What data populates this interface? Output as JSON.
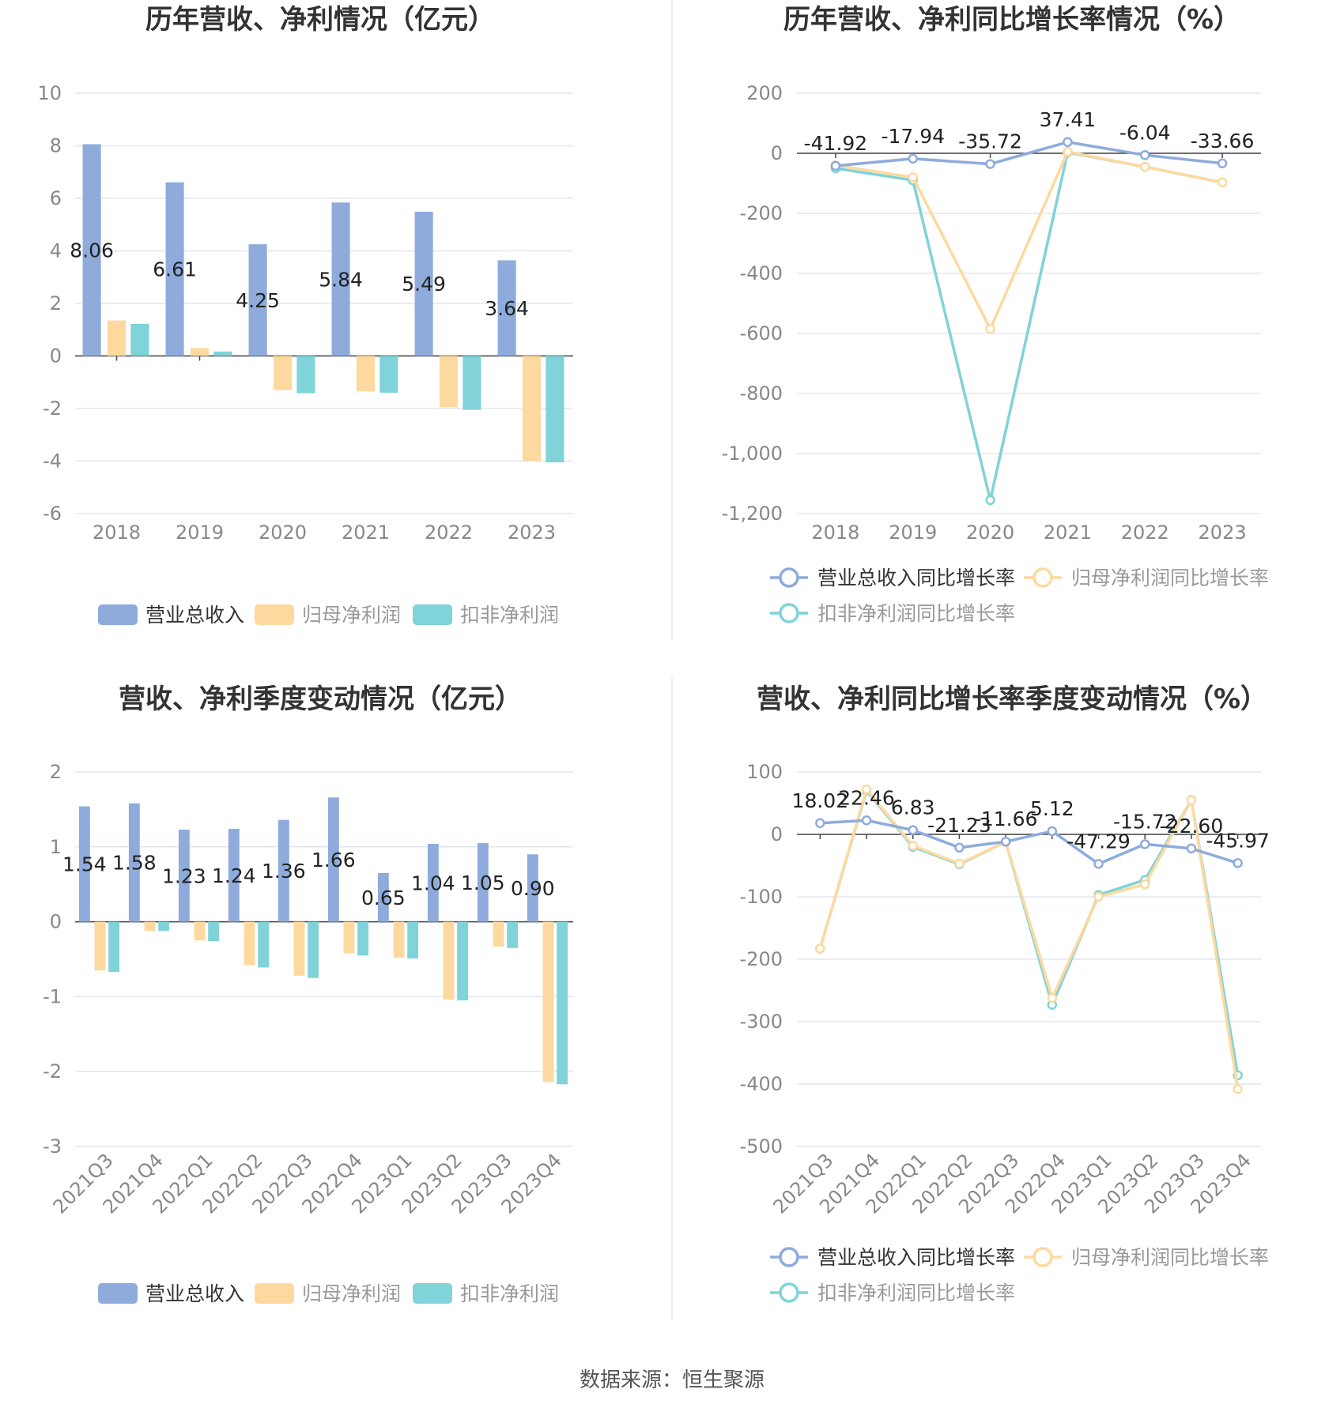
{
  "colors": {
    "revenue": "#8eabdc",
    "net_profit": "#fdd99f",
    "deducted": "#7fd3d9",
    "grid": "#e3e6ef",
    "axis": "#444444",
    "tick_text": "#888888",
    "title": "#333333",
    "label_text": "#222222",
    "divider": "#eeeeee"
  },
  "footer": {
    "source": "数据来源：恒生聚源"
  },
  "chart_data": [
    {
      "id": "annual-amount",
      "type": "bar",
      "title": "历年营收、净利情况（亿元）",
      "categories": [
        "2018",
        "2019",
        "2020",
        "2021",
        "2022",
        "2023"
      ],
      "ylim": [
        -6,
        10
      ],
      "yticks": [
        "10",
        "8",
        "6",
        "4",
        "2",
        "0",
        "-2",
        "-4",
        "-6"
      ],
      "grid": true,
      "legend": "bottom",
      "series": [
        {
          "name": "营业总收入",
          "color_key": "revenue",
          "values": [
            8.06,
            6.61,
            4.25,
            5.84,
            5.49,
            3.64
          ],
          "labels": [
            "8.06",
            "6.61",
            "4.25",
            "5.84",
            "5.49",
            "3.64"
          ]
        },
        {
          "name": "归母净利润",
          "color_key": "net_profit",
          "values": [
            1.35,
            0.3,
            -1.3,
            -1.35,
            -1.95,
            -4.0
          ]
        },
        {
          "name": "扣非净利润",
          "color_key": "deducted",
          "values": [
            1.22,
            0.17,
            -1.42,
            -1.4,
            -2.05,
            -4.05
          ]
        }
      ]
    },
    {
      "id": "annual-growth",
      "type": "line",
      "title": "历年营收、净利同比增长率情况（%）",
      "categories": [
        "2018",
        "2019",
        "2020",
        "2021",
        "2022",
        "2023"
      ],
      "ylim": [
        -1200,
        200
      ],
      "yticks": [
        "200",
        "0",
        "-200",
        "-400",
        "-600",
        "-800",
        "-1,000",
        "-1,200"
      ],
      "grid": true,
      "legend": "bottom",
      "series": [
        {
          "name": "营业总收入同比增长率",
          "color_key": "revenue",
          "values": [
            -41.92,
            -17.94,
            -35.72,
            37.41,
            -6.04,
            -33.66
          ],
          "labels": [
            "-41.92",
            "-17.94",
            "-35.72",
            "37.41",
            "-6.04",
            "-33.66"
          ]
        },
        {
          "name": "归母净利润同比增长率",
          "color_key": "net_profit",
          "values": [
            -40,
            -80,
            -585,
            5,
            -45,
            -97
          ]
        },
        {
          "name": "扣非净利润同比增长率",
          "color_key": "deducted",
          "values": [
            -50,
            -90,
            -1155,
            3,
            -45,
            -97
          ]
        }
      ]
    },
    {
      "id": "quarterly-amount",
      "type": "bar",
      "title": "营收、净利季度变动情况（亿元）",
      "categories": [
        "2021Q3",
        "2021Q4",
        "2022Q1",
        "2022Q2",
        "2022Q3",
        "2022Q4",
        "2023Q1",
        "2023Q2",
        "2023Q3",
        "2023Q4"
      ],
      "ylim": [
        -3,
        2
      ],
      "yticks": [
        "2",
        "1",
        "0",
        "-1",
        "-2",
        "-3"
      ],
      "grid": true,
      "legend": "bottom",
      "series": [
        {
          "name": "营业总收入",
          "color_key": "revenue",
          "values": [
            1.54,
            1.58,
            1.23,
            1.24,
            1.36,
            1.66,
            0.65,
            1.04,
            1.05,
            0.9
          ],
          "labels": [
            "1.54",
            "1.58",
            "1.23",
            "1.24",
            "1.36",
            "1.66",
            "0.65",
            "1.04",
            "1.05",
            "0.90"
          ]
        },
        {
          "name": "归母净利润",
          "color_key": "net_profit",
          "values": [
            -0.65,
            -0.12,
            -0.25,
            -0.58,
            -0.72,
            -0.42,
            -0.48,
            -1.04,
            -0.33,
            -2.14
          ]
        },
        {
          "name": "扣非净利润",
          "color_key": "deducted",
          "values": [
            -0.67,
            -0.12,
            -0.26,
            -0.61,
            -0.75,
            -0.45,
            -0.49,
            -1.05,
            -0.35,
            -2.17
          ]
        }
      ]
    },
    {
      "id": "quarterly-growth",
      "type": "line",
      "title": "营收、净利同比增长率季度变动情况（%）",
      "categories": [
        "2021Q3",
        "2021Q4",
        "2022Q1",
        "2022Q2",
        "2022Q3",
        "2022Q4",
        "2023Q1",
        "2023Q2",
        "2023Q3",
        "2023Q4"
      ],
      "ylim": [
        -500,
        100
      ],
      "yticks": [
        "100",
        "0",
        "-100",
        "-200",
        "-300",
        "-400",
        "-500"
      ],
      "grid": true,
      "legend": "bottom",
      "series": [
        {
          "name": "营业总收入同比增长率",
          "color_key": "revenue",
          "values": [
            18.02,
            22.46,
            6.83,
            -21.23,
            -11.66,
            5.12,
            -47.29,
            -15.72,
            -22.6,
            -45.97
          ],
          "labels": [
            "18.02",
            "22.46",
            "6.83",
            "-21.23",
            "-11.66",
            "5.12",
            "-47.29",
            "-15.72",
            "-22.60",
            "-45.97"
          ]
        },
        {
          "name": "归母净利润同比增长率",
          "color_key": "net_profit",
          "values": [
            -183,
            72,
            -18,
            -47,
            -12,
            -262,
            -100,
            -80,
            55,
            -408
          ]
        },
        {
          "name": "扣非净利润同比增长率",
          "color_key": "deducted",
          "values": [
            -183,
            70,
            -20,
            -48,
            -12,
            -273,
            -97,
            -73,
            55,
            -386
          ]
        }
      ]
    }
  ]
}
